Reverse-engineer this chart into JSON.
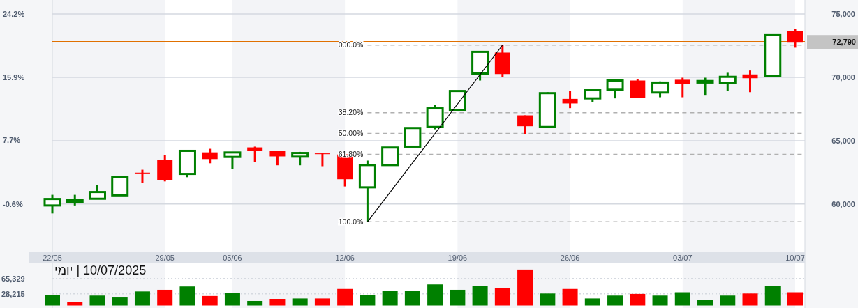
{
  "chart_data": [
    {
      "type": "candlestick",
      "categories": [
        "22/05",
        null,
        null,
        null,
        null,
        "29/05",
        null,
        null,
        "05/06",
        null,
        null,
        null,
        null,
        "12/06",
        null,
        null,
        null,
        null,
        "19/06",
        null,
        null,
        null,
        null,
        "26/06",
        null,
        null,
        null,
        null,
        "03/07",
        null,
        null,
        null,
        null,
        "10/07"
      ],
      "ohlc": [
        [
          59890,
          60730,
          59260,
          60400
        ],
        [
          60130,
          60730,
          59890,
          60310
        ],
        [
          60420,
          61500,
          60420,
          60950
        ],
        [
          60690,
          62160,
          60690,
          62160
        ],
        [
          62480,
          62710,
          61680,
          62420
        ],
        [
          63480,
          63880,
          61790,
          61890
        ],
        [
          62380,
          64200,
          62120,
          64200
        ],
        [
          64080,
          64360,
          63220,
          63550
        ],
        [
          63720,
          64070,
          62780,
          64070
        ],
        [
          64470,
          64530,
          63330,
          64180
        ],
        [
          64200,
          64200,
          63060,
          63760
        ],
        [
          63740,
          64120,
          63060,
          64030
        ],
        [
          64000,
          64000,
          62990,
          63940
        ],
        [
          63920,
          63920,
          61390,
          61960
        ],
        [
          61320,
          63430,
          58600,
          63080
        ],
        [
          63080,
          64460,
          63080,
          64460
        ],
        [
          64530,
          66000,
          64530,
          66000
        ],
        [
          66080,
          67830,
          65900,
          67550
        ],
        [
          67440,
          68920,
          67440,
          68920
        ],
        [
          70300,
          72010,
          69750,
          72010
        ],
        [
          71950,
          72540,
          70040,
          70260
        ],
        [
          67000,
          67000,
          65500,
          66140
        ],
        [
          66080,
          68820,
          66000,
          68750
        ],
        [
          68300,
          68930,
          67570,
          67940
        ],
        [
          68340,
          68980,
          68060,
          68980
        ],
        [
          69020,
          69810,
          68340,
          69750
        ],
        [
          69750,
          69860,
          68390,
          68390
        ],
        [
          68800,
          69680,
          68430,
          69590
        ],
        [
          69810,
          69970,
          68430,
          69480
        ],
        [
          69590,
          69970,
          68560,
          69710
        ],
        [
          69570,
          70360,
          68930,
          70040
        ],
        [
          70230,
          70540,
          68830,
          69930
        ],
        [
          70080,
          73330,
          70080,
          73330
        ],
        [
          73660,
          73800,
          72340,
          72790
        ]
      ],
      "colors": [
        "#008000",
        "#008000",
        "#008000",
        "#008000",
        "#ff0000",
        "#ff0000",
        "#008000",
        "#ff0000",
        "#008000",
        "#ff0000",
        "#ff0000",
        "#008000",
        "#ff0000",
        "#ff0000",
        "#008000",
        "#008000",
        "#008000",
        "#008000",
        "#008000",
        "#008000",
        "#ff0000",
        "#ff0000",
        "#008000",
        "#ff0000",
        "#008000",
        "#008000",
        "#ff0000",
        "#008000",
        "#ff0000",
        "#008000",
        "#008000",
        "#ff0000",
        "#008000",
        "#ff0000"
      ],
      "series": [
        {
          "type": "line",
          "color": "#000000",
          "values": [
            null,
            null,
            null,
            null,
            null,
            null,
            null,
            null,
            null,
            null,
            null,
            null,
            null,
            null,
            58600,
            null,
            null,
            null,
            null,
            null,
            72540,
            null,
            null,
            null,
            null,
            null,
            null,
            null,
            null,
            null,
            null,
            null,
            null,
            null
          ]
        }
      ],
      "ylim": [
        56200,
        76100
      ],
      "yticks": [
        {
          "value": 60000,
          "label": "60,000"
        },
        {
          "value": 65000,
          "label": "65,000"
        },
        {
          "value": 70000,
          "label": "70,000"
        },
        {
          "value": 75000,
          "label": "75,000"
        }
      ],
      "y2lim": [
        -6.9,
        26.0
      ],
      "y2ticks": [
        {
          "value": -0.6,
          "label": "-0.6%"
        },
        {
          "value": 7.7,
          "label": "7.7%"
        },
        {
          "value": 15.9,
          "label": "15.9%"
        },
        {
          "value": 24.2,
          "label": "24.2%"
        }
      ],
      "grid": "y",
      "bands": [
        {
          "axis": "x",
          "from": "22/05",
          "to": "29/05",
          "color": "#f3f4f7"
        },
        {
          "axis": "x",
          "from": "05/06",
          "to": "12/06",
          "color": "#f3f4f7"
        },
        {
          "axis": "x",
          "from": "19/06",
          "to": "26/06",
          "color": "#f3f4f7"
        },
        {
          "axis": "x",
          "from": "03/07",
          "to": "10/07",
          "color": "#f3f4f7"
        }
      ],
      "ref_lines": [
        {
          "axis": "y",
          "value": 72830,
          "color": "#e07000",
          "line_style": "solid"
        },
        {
          "axis": "y",
          "value": 72540,
          "color": "#b0b0b0",
          "line_style": "dashed"
        },
        {
          "axis": "y",
          "value": 67215,
          "color": "#b0b0b0",
          "line_style": "dashed"
        },
        {
          "axis": "y",
          "value": 65570,
          "color": "#b0b0b0",
          "line_style": "dashed"
        },
        {
          "axis": "y",
          "value": 63925,
          "color": "#b0b0b0",
          "line_style": "dashed"
        },
        {
          "axis": "y",
          "value": 58600,
          "color": "#b0b0b0",
          "line_style": "dashed"
        }
      ],
      "annotations": [
        "000.0%",
        "38.20%",
        "50.00%",
        "61.80%",
        "100.0%",
        "72,790"
      ]
    },
    {
      "type": "bar",
      "title": "10/07/2025 | יומי",
      "categories": [
        "22/05",
        null,
        null,
        null,
        null,
        "29/05",
        null,
        null,
        "05/06",
        null,
        null,
        null,
        null,
        "12/06",
        null,
        null,
        null,
        null,
        "19/06",
        null,
        null,
        null,
        null,
        "26/06",
        null,
        null,
        null,
        null,
        "03/07",
        null,
        null,
        null,
        null,
        "10/07"
      ],
      "values": [
        26000,
        9000,
        24000,
        21000,
        34000,
        38000,
        46000,
        23000,
        30000,
        11000,
        16000,
        17000,
        17000,
        40000,
        26000,
        36000,
        36000,
        51000,
        38000,
        48000,
        43000,
        87000,
        29000,
        40000,
        17000,
        24000,
        28000,
        24000,
        32000,
        14000,
        24000,
        29000,
        48000,
        32000
      ],
      "colors": [
        "#008000",
        "#ff0000",
        "#008000",
        "#008000",
        "#008000",
        "#ff0000",
        "#008000",
        "#ff0000",
        "#008000",
        "#008000",
        "#ff0000",
        "#008000",
        "#ff0000",
        "#ff0000",
        "#008000",
        "#008000",
        "#008000",
        "#008000",
        "#008000",
        "#008000",
        "#ff0000",
        "#ff0000",
        "#008000",
        "#ff0000",
        "#008000",
        "#008000",
        "#ff0000",
        "#008000",
        "#008000",
        "#008000",
        "#008000",
        "#ff0000",
        "#008000",
        "#ff0000"
      ],
      "ylim": [
        0,
        102000
      ],
      "yticks": [
        {
          "value": 28215,
          "label": "28,215"
        },
        {
          "value": 65329,
          "label": "65,329"
        }
      ],
      "grid": "y",
      "tick_labels": "y"
    }
  ]
}
